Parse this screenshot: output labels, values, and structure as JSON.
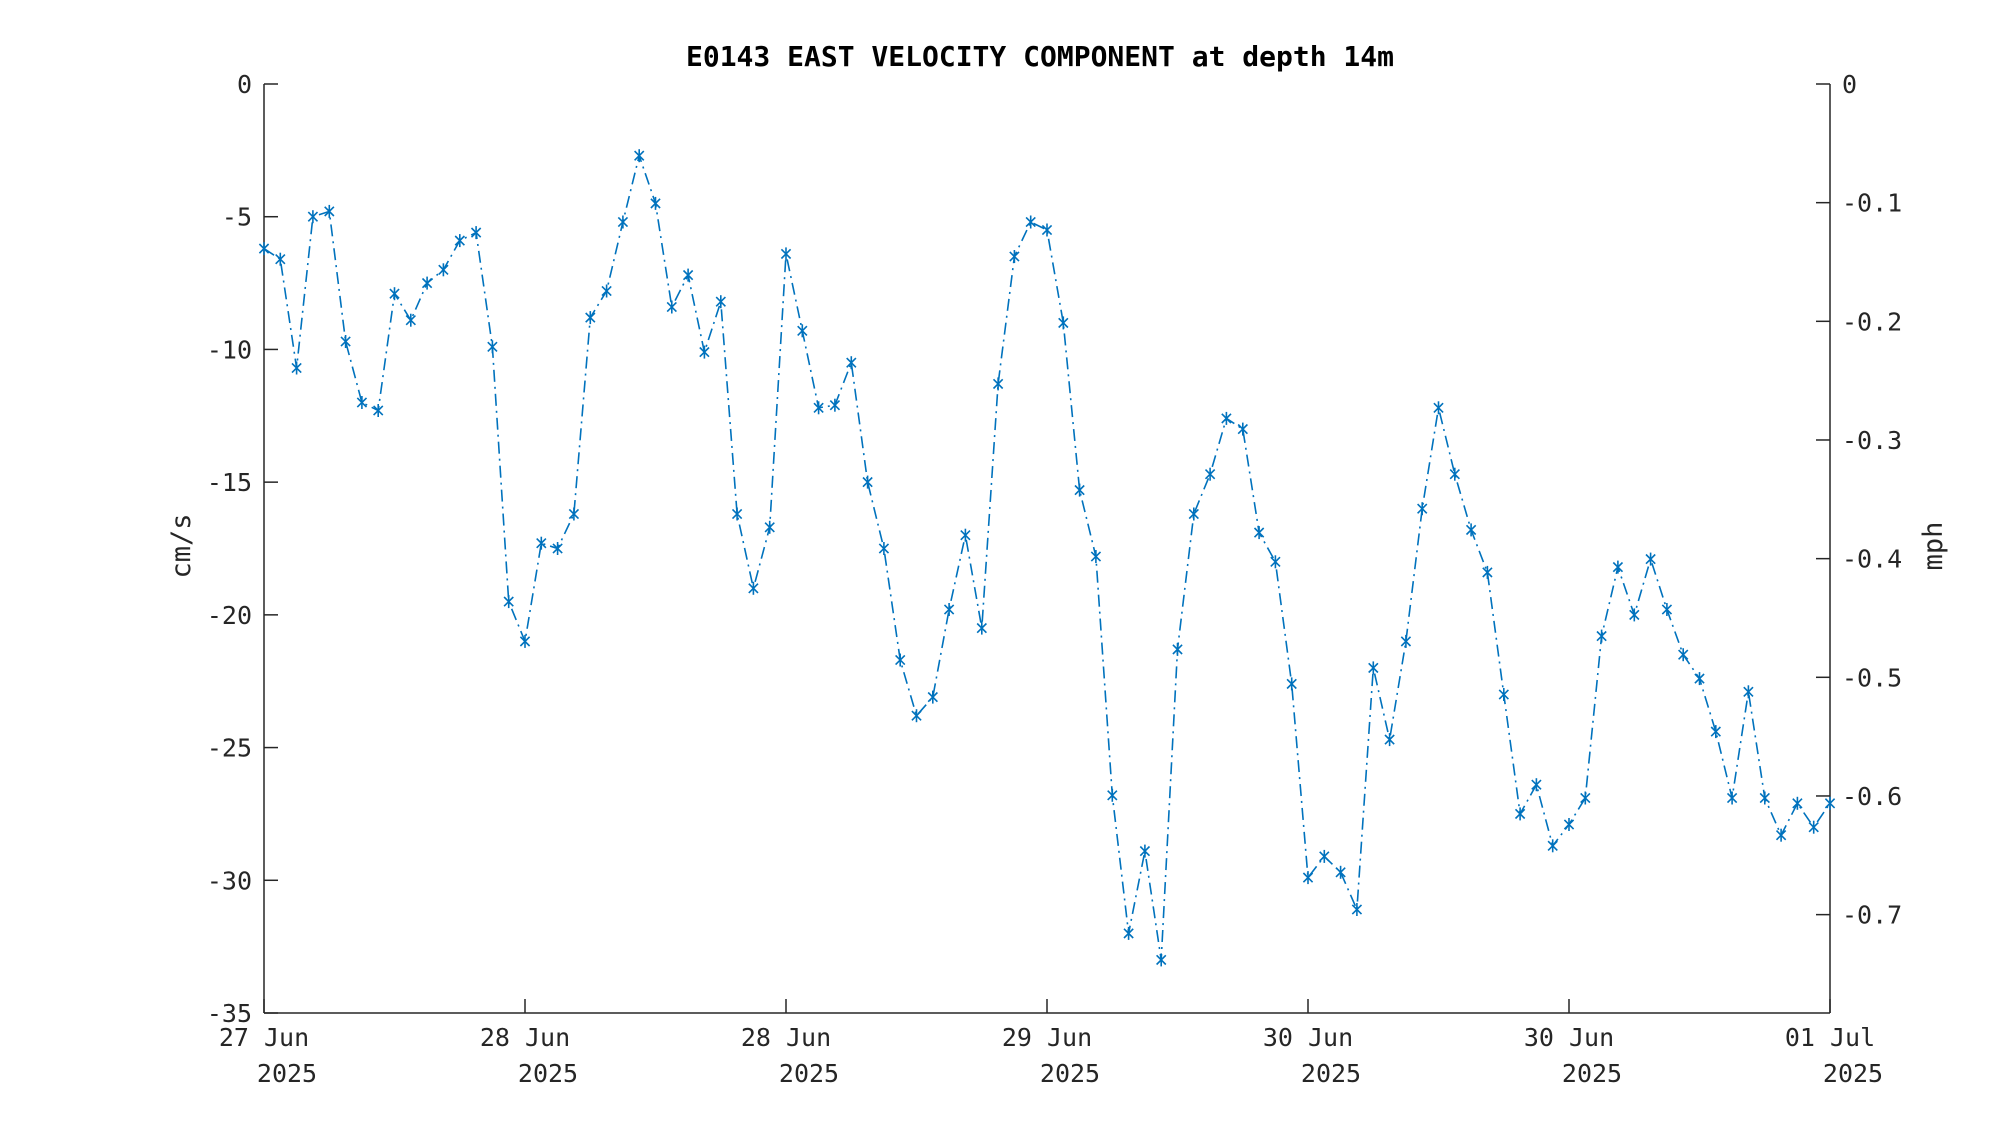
{
  "chart_data": {
    "type": "line",
    "title": "E0143 EAST VELOCITY COMPONENT at depth 14m",
    "ylabel": "cm/s",
    "y2label": "mph",
    "ylim": [
      -35,
      0
    ],
    "y2lim": [
      -0.7829,
      0
    ],
    "yticks": [
      0,
      -5,
      -10,
      -15,
      -20,
      -25,
      -30,
      -35
    ],
    "y2ticks": [
      0,
      -0.1,
      -0.2,
      -0.3,
      -0.4,
      -0.5,
      -0.6,
      -0.7
    ],
    "y2ticklabels": [
      "0",
      "-0.1",
      "-0.2",
      "-0.3",
      "-0.4",
      "-0.5",
      "-0.6",
      "-0.7"
    ],
    "xlim": [
      "2025-06-27 00:00",
      "2025-07-01 00:00"
    ],
    "xticks": [
      {
        "date": "2025-06-27 00:00",
        "line1": "27 Jun",
        "line2": "2025"
      },
      {
        "date": "2025-06-27 16:00",
        "line1": "28 Jun",
        "line2": "2025"
      },
      {
        "date": "2025-06-28 08:00",
        "line1": "28 Jun",
        "line2": "2025"
      },
      {
        "date": "2025-06-29 00:00",
        "line1": "29 Jun",
        "line2": "2025"
      },
      {
        "date": "2025-06-29 16:00",
        "line1": "30 Jun",
        "line2": "2025"
      },
      {
        "date": "2025-06-30 08:00",
        "line1": "30 Jun",
        "line2": "2025"
      },
      {
        "date": "2025-07-01 00:00",
        "line1": "01 Jul",
        "line2": "2025"
      }
    ],
    "grid": false,
    "series": [
      {
        "color": "#0072BD",
        "line_style": "dash-dot",
        "marker": "asterisk",
        "x": [
          "2025-06-27 00:00",
          "2025-06-27 01:00",
          "2025-06-27 02:00",
          "2025-06-27 03:00",
          "2025-06-27 04:00",
          "2025-06-27 05:00",
          "2025-06-27 06:00",
          "2025-06-27 07:00",
          "2025-06-27 08:00",
          "2025-06-27 09:00",
          "2025-06-27 10:00",
          "2025-06-27 11:00",
          "2025-06-27 12:00",
          "2025-06-27 13:00",
          "2025-06-27 14:00",
          "2025-06-27 15:00",
          "2025-06-27 16:00",
          "2025-06-27 17:00",
          "2025-06-27 18:00",
          "2025-06-27 19:00",
          "2025-06-27 20:00",
          "2025-06-27 21:00",
          "2025-06-27 22:00",
          "2025-06-27 23:00",
          "2025-06-28 00:00",
          "2025-06-28 01:00",
          "2025-06-28 02:00",
          "2025-06-28 03:00",
          "2025-06-28 04:00",
          "2025-06-28 05:00",
          "2025-06-28 06:00",
          "2025-06-28 07:00",
          "2025-06-28 08:00",
          "2025-06-28 09:00",
          "2025-06-28 10:00",
          "2025-06-28 11:00",
          "2025-06-28 12:00",
          "2025-06-28 13:00",
          "2025-06-28 14:00",
          "2025-06-28 15:00",
          "2025-06-28 16:00",
          "2025-06-28 17:00",
          "2025-06-28 18:00",
          "2025-06-28 19:00",
          "2025-06-28 20:00",
          "2025-06-28 21:00",
          "2025-06-28 22:00",
          "2025-06-28 23:00",
          "2025-06-29 00:00",
          "2025-06-29 01:00",
          "2025-06-29 02:00",
          "2025-06-29 03:00",
          "2025-06-29 04:00",
          "2025-06-29 05:00",
          "2025-06-29 06:00",
          "2025-06-29 07:00",
          "2025-06-29 08:00",
          "2025-06-29 09:00",
          "2025-06-29 10:00",
          "2025-06-29 11:00",
          "2025-06-29 12:00",
          "2025-06-29 13:00",
          "2025-06-29 14:00",
          "2025-06-29 15:00",
          "2025-06-29 16:00",
          "2025-06-29 17:00",
          "2025-06-29 18:00",
          "2025-06-29 19:00",
          "2025-06-29 20:00",
          "2025-06-29 21:00",
          "2025-06-29 22:00",
          "2025-06-29 23:00",
          "2025-06-30 00:00",
          "2025-06-30 01:00",
          "2025-06-30 02:00",
          "2025-06-30 03:00",
          "2025-06-30 04:00",
          "2025-06-30 05:00",
          "2025-06-30 06:00",
          "2025-06-30 07:00",
          "2025-06-30 08:00",
          "2025-06-30 09:00",
          "2025-06-30 10:00",
          "2025-06-30 11:00",
          "2025-06-30 12:00",
          "2025-06-30 13:00",
          "2025-06-30 14:00",
          "2025-06-30 15:00",
          "2025-06-30 16:00",
          "2025-06-30 17:00",
          "2025-06-30 18:00",
          "2025-06-30 19:00",
          "2025-06-30 20:00",
          "2025-06-30 21:00",
          "2025-06-30 22:00",
          "2025-06-30 23:00",
          "2025-07-01 00:00"
        ],
        "y": [
          -6.2,
          -6.6,
          -10.7,
          -5.0,
          -4.8,
          -9.7,
          -12.0,
          -12.3,
          -7.9,
          -8.9,
          -7.5,
          -7.0,
          -5.9,
          -5.6,
          -9.9,
          -19.5,
          -21.0,
          -17.3,
          -17.5,
          -16.2,
          -8.8,
          -7.8,
          -5.2,
          -2.7,
          -4.5,
          -8.4,
          -7.2,
          -10.1,
          -8.2,
          -16.2,
          -19.0,
          -16.7,
          -6.4,
          -9.3,
          -12.2,
          -12.1,
          -10.5,
          -15.0,
          -17.5,
          -21.7,
          -23.8,
          -23.1,
          -19.8,
          -17.0,
          -20.5,
          -11.3,
          -6.5,
          -5.2,
          -5.5,
          -9.0,
          -15.3,
          -17.8,
          -26.8,
          -32.0,
          -28.9,
          -33.0,
          -21.3,
          -16.2,
          -14.7,
          -12.6,
          -13.0,
          -16.9,
          -18.0,
          -22.6,
          -29.9,
          -29.1,
          -29.7,
          -31.1,
          -22.0,
          -24.7,
          -21.0,
          -16.0,
          -12.2,
          -14.7,
          -16.8,
          -18.4,
          -23.0,
          -27.5,
          -26.4,
          -28.7,
          -27.9,
          -26.9,
          -20.8,
          -18.2,
          -20.0,
          -17.9,
          -19.8,
          -21.5,
          -22.4,
          -24.4,
          -26.9,
          -22.9,
          -26.9,
          -28.3,
          -27.1,
          -28.0,
          -27.1
        ]
      }
    ]
  }
}
